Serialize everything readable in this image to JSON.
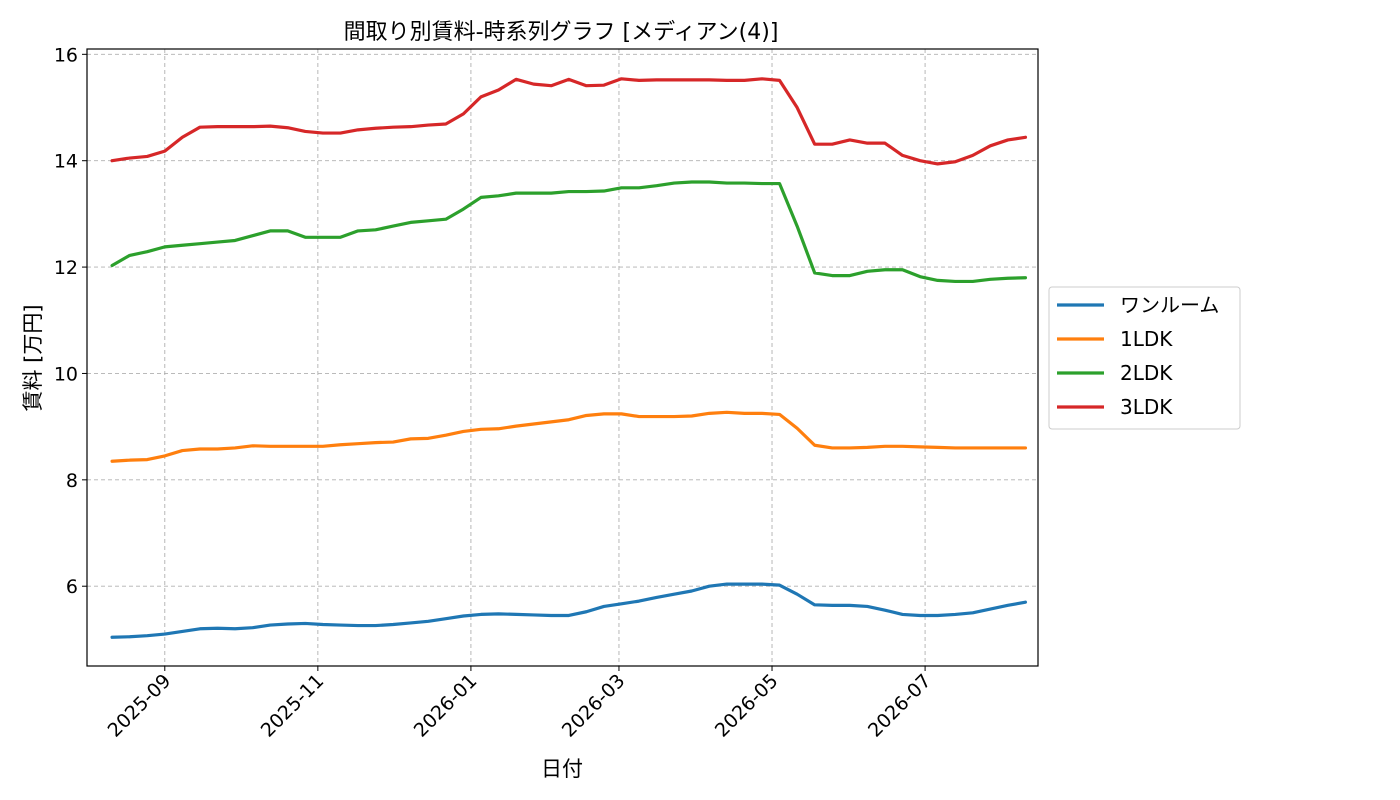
{
  "chart_data": {
    "type": "line",
    "title": "間取り別賃料-時系列グラフ [メディアン(4)]",
    "xlabel": "日付",
    "ylabel": "賃料 [万円]",
    "x_type": "date",
    "xlim": [
      "2025-08-01",
      "2026-08-15"
    ],
    "ylim": [
      4.5,
      16.1
    ],
    "y_ticks": [
      6,
      8,
      10,
      12,
      14,
      16
    ],
    "x_ticks": [
      "2025-09-01",
      "2025-11-01",
      "2026-01-01",
      "2026-03-01",
      "2026-05-01",
      "2026-07-01"
    ],
    "x_tick_labels": [
      "2025-09",
      "2025-11",
      "2026-01",
      "2026-03",
      "2026-05",
      "2026-07"
    ],
    "grid": true,
    "legend_position": "right-outside",
    "x": [
      "2025-08-11",
      "2025-08-18",
      "2025-08-25",
      "2025-09-01",
      "2025-09-08",
      "2025-09-15",
      "2025-09-22",
      "2025-09-29",
      "2025-10-06",
      "2025-10-13",
      "2025-10-20",
      "2025-10-27",
      "2025-11-03",
      "2025-11-10",
      "2025-11-17",
      "2025-11-24",
      "2025-12-01",
      "2025-12-08",
      "2025-12-15",
      "2025-12-22",
      "2025-12-29",
      "2026-01-05",
      "2026-01-12",
      "2026-01-19",
      "2026-01-26",
      "2026-02-02",
      "2026-02-09",
      "2026-02-16",
      "2026-02-23",
      "2026-03-02",
      "2026-03-09",
      "2026-03-16",
      "2026-03-23",
      "2026-03-30",
      "2026-04-06",
      "2026-04-13",
      "2026-04-20",
      "2026-04-27",
      "2026-05-04",
      "2026-05-11",
      "2026-05-18",
      "2026-05-25",
      "2026-06-01",
      "2026-06-08",
      "2026-06-15",
      "2026-06-22",
      "2026-06-29",
      "2026-07-06",
      "2026-07-13",
      "2026-07-20",
      "2026-07-27",
      "2026-08-03",
      "2026-08-10"
    ],
    "series": [
      {
        "name": "ワンルーム",
        "color": "#1f77b4",
        "values": [
          5.04,
          5.05,
          5.07,
          5.1,
          5.15,
          5.2,
          5.21,
          5.2,
          5.22,
          5.27,
          5.29,
          5.3,
          5.28,
          5.27,
          5.26,
          5.26,
          5.28,
          5.31,
          5.34,
          5.39,
          5.44,
          5.47,
          5.48,
          5.47,
          5.46,
          5.45,
          5.45,
          5.52,
          5.62,
          5.67,
          5.72,
          5.79,
          5.85,
          5.91,
          6.0,
          6.04,
          6.04,
          6.04,
          6.02,
          5.85,
          5.65,
          5.64,
          5.64,
          5.62,
          5.55,
          5.47,
          5.45,
          5.45,
          5.47,
          5.5,
          5.57,
          5.64,
          5.7
        ]
      },
      {
        "name": "1LDK",
        "color": "#ff7f0e",
        "values": [
          8.35,
          8.37,
          8.38,
          8.45,
          8.55,
          8.58,
          8.58,
          8.6,
          8.64,
          8.63,
          8.63,
          8.63,
          8.63,
          8.66,
          8.68,
          8.7,
          8.71,
          8.77,
          8.78,
          8.84,
          8.91,
          8.95,
          8.96,
          9.01,
          9.05,
          9.09,
          9.13,
          9.21,
          9.24,
          9.24,
          9.19,
          9.19,
          9.19,
          9.2,
          9.25,
          9.27,
          9.25,
          9.25,
          9.23,
          8.97,
          8.65,
          8.6,
          8.6,
          8.61,
          8.63,
          8.63,
          8.62,
          8.61,
          8.6,
          8.6,
          8.6,
          8.6,
          8.6
        ]
      },
      {
        "name": "2LDK",
        "color": "#2ca02c",
        "values": [
          12.03,
          12.22,
          12.29,
          12.38,
          12.41,
          12.44,
          12.47,
          12.5,
          12.59,
          12.68,
          12.68,
          12.56,
          12.56,
          12.56,
          12.68,
          12.7,
          12.77,
          12.84,
          12.87,
          12.9,
          13.09,
          13.31,
          13.34,
          13.39,
          13.39,
          13.39,
          13.42,
          13.42,
          13.43,
          13.49,
          13.49,
          13.53,
          13.58,
          13.6,
          13.6,
          13.58,
          13.58,
          13.57,
          13.57,
          12.77,
          11.89,
          11.84,
          11.84,
          11.92,
          11.95,
          11.95,
          11.82,
          11.75,
          11.73,
          11.73,
          11.77,
          11.79,
          11.8
        ]
      },
      {
        "name": "3LDK",
        "color": "#d62728",
        "values": [
          14.0,
          14.05,
          14.08,
          14.18,
          14.44,
          14.63,
          14.64,
          14.64,
          14.64,
          14.65,
          14.62,
          14.55,
          14.52,
          14.52,
          14.58,
          14.61,
          14.63,
          14.64,
          14.67,
          14.69,
          14.88,
          15.2,
          15.33,
          15.53,
          15.44,
          15.41,
          15.53,
          15.41,
          15.42,
          15.54,
          15.51,
          15.52,
          15.52,
          15.52,
          15.52,
          15.51,
          15.51,
          15.54,
          15.51,
          15.0,
          14.31,
          14.31,
          14.39,
          14.33,
          14.33,
          14.1,
          14.0,
          13.94,
          13.98,
          14.1,
          14.28,
          14.39,
          14.44
        ]
      }
    ]
  }
}
